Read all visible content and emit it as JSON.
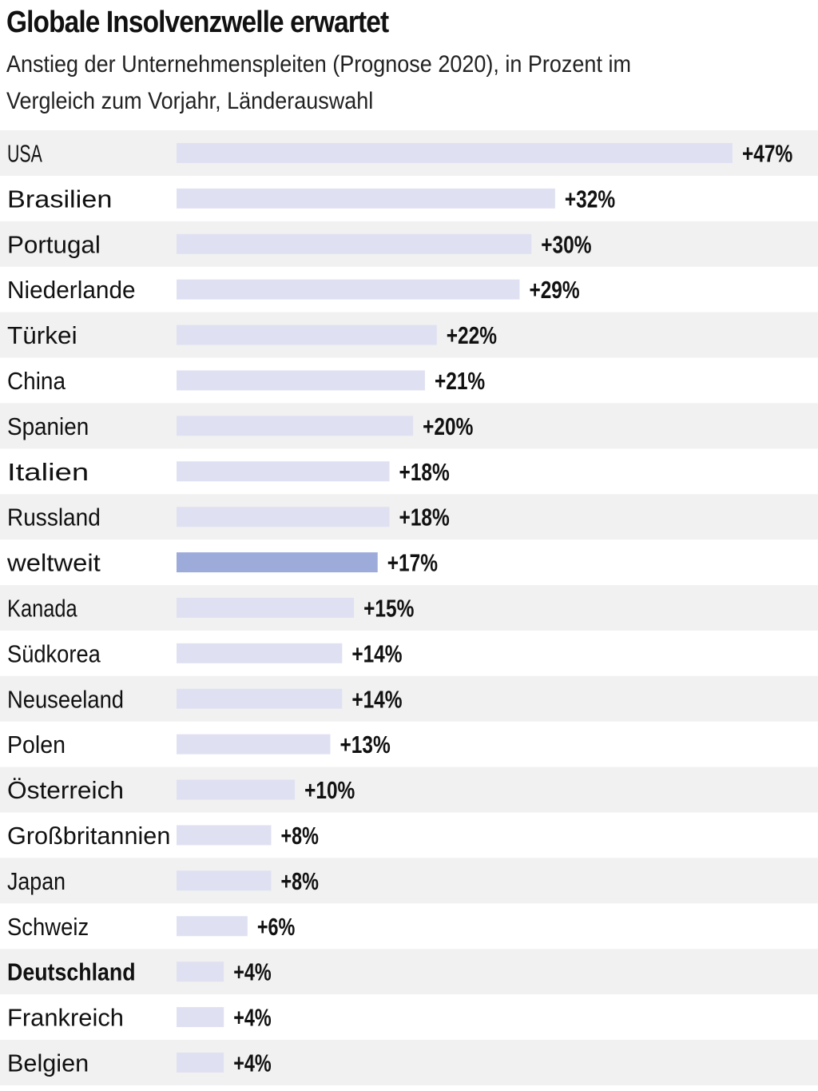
{
  "title": "Globale Insolvenzwelle erwartet",
  "subtitle": "Anstieg der Unternehmenspleiten (Prognose 2020), in Prozent im Vergleich zum Vorjahr, Länderauswahl",
  "colors": {
    "bar": "#dfe1f2",
    "bar_highlight": "#9dabda",
    "row_stripe": "#f1f1f1",
    "text": "#111111"
  },
  "chart_data": {
    "type": "bar",
    "orientation": "horizontal",
    "categories": [
      "USA",
      "Brasilien",
      "Portugal",
      "Niederlande",
      "Türkei",
      "China",
      "Spanien",
      "Italien",
      "Russland",
      "weltweit",
      "Kanada",
      "Südkorea",
      "Neuseeland",
      "Polen",
      "Österreich",
      "Großbritannien",
      "Japan",
      "Schweiz",
      "Deutschland",
      "Frankreich",
      "Belgien"
    ],
    "values": [
      47,
      32,
      30,
      29,
      22,
      21,
      20,
      18,
      18,
      17,
      15,
      14,
      14,
      13,
      10,
      8,
      8,
      6,
      4,
      4,
      4
    ],
    "value_labels": [
      "+47%",
      "+32%",
      "+30%",
      "+29%",
      "+22%",
      "+21%",
      "+20%",
      "+18%",
      "+18%",
      "+17%",
      "+15%",
      "+14%",
      "+14%",
      "+13%",
      "+10%",
      "+8%",
      "+8%",
      "+6%",
      "+4%",
      "+4%",
      "+4%"
    ],
    "highlight_bar": "weltweit",
    "bold_label": "Deutschland",
    "xlim": [
      0,
      47
    ],
    "grid": false,
    "legend": "none"
  }
}
